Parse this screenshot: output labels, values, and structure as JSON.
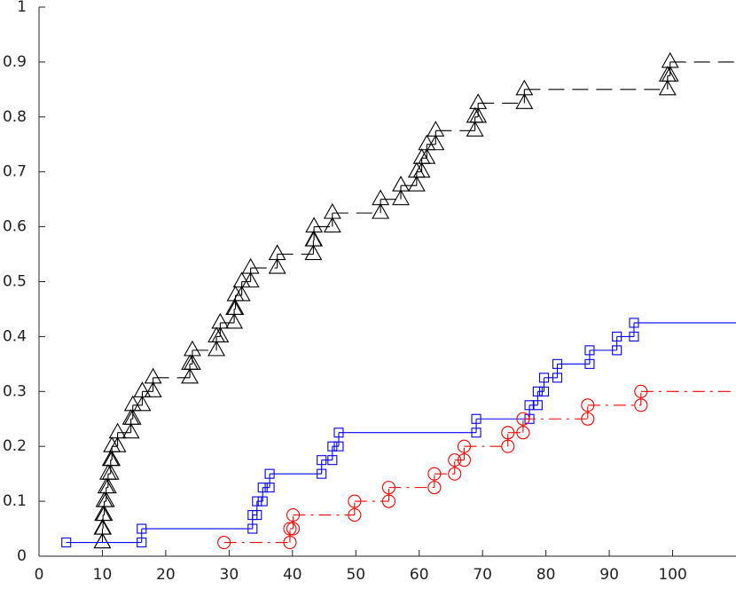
{
  "chart_data": {
    "type": "stairs",
    "xlim": [
      0,
      110
    ],
    "ylim": [
      0,
      1
    ],
    "xticks": [
      0,
      10,
      20,
      30,
      40,
      50,
      60,
      70,
      80,
      90,
      100
    ],
    "yticks": [
      0,
      0.1,
      0.2,
      0.3,
      0.4,
      0.5,
      0.6,
      0.7,
      0.8,
      0.9,
      1
    ],
    "series": [
      {
        "color": "#000000",
        "linestyle": "--",
        "marker": "^",
        "x": [
          10.0,
          10.0,
          10.1,
          10.3,
          10.6,
          10.9,
          11.3,
          11.5,
          12.4,
          14.5,
          14.8,
          16.3,
          18.0,
          23.8,
          24.2,
          28.0,
          28.6,
          30.8,
          31.0,
          32.0,
          33.4,
          37.6,
          43.3,
          43.4,
          46.3,
          53.9,
          57.1,
          59.6,
          60.4,
          61.2,
          62.6,
          68.8,
          69.3,
          76.6,
          99.2,
          99.6
        ],
        "values": [
          0.025,
          0.05,
          0.075,
          0.1,
          0.125,
          0.15,
          0.175,
          0.2,
          0.225,
          0.25,
          0.275,
          0.3,
          0.325,
          0.35,
          0.375,
          0.4,
          0.425,
          0.45,
          0.475,
          0.5,
          0.525,
          0.55,
          0.575,
          0.6,
          0.625,
          0.65,
          0.675,
          0.7,
          0.725,
          0.75,
          0.775,
          0.8,
          0.825,
          0.85,
          0.875,
          0.9
        ]
      },
      {
        "color": "#0000ff",
        "linestyle": "-",
        "marker": "s",
        "x": [
          4.3,
          16.2,
          33.7,
          34.4,
          35.3,
          36.4,
          44.6,
          46.3,
          47.3,
          69.0,
          77.4,
          78.7,
          79.7,
          81.8,
          86.9,
          91.2,
          93.9
        ],
        "values": [
          0.025,
          0.05,
          0.075,
          0.1,
          0.125,
          0.15,
          0.175,
          0.2,
          0.225,
          0.25,
          0.275,
          0.3,
          0.325,
          0.35,
          0.375,
          0.4,
          0.425
        ]
      },
      {
        "color": "#ff0000",
        "linestyle": "-.",
        "marker": "o",
        "x": [
          29.2,
          39.6,
          40.1,
          49.8,
          55.2,
          62.4,
          65.6,
          67.1,
          74.0,
          76.4,
          86.6,
          95.0
        ],
        "values": [
          0.025,
          0.05,
          0.075,
          0.1,
          0.125,
          0.15,
          0.175,
          0.2,
          0.225,
          0.25,
          0.275,
          0.3
        ]
      }
    ]
  }
}
